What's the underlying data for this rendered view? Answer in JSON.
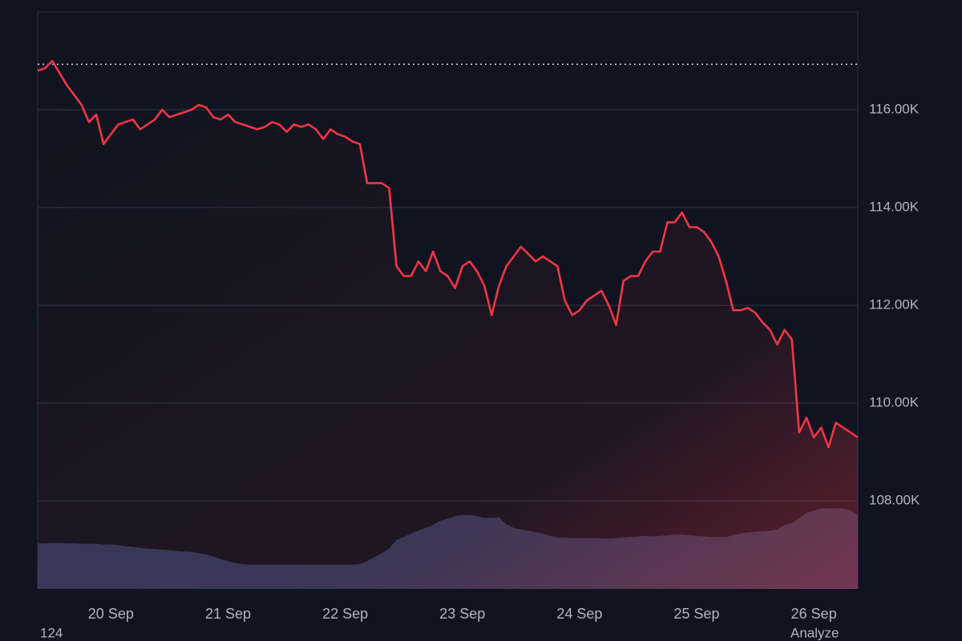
{
  "chart_data": {
    "type": "line",
    "categories": [
      null,
      null,
      null,
      null,
      null,
      null,
      null,
      null,
      null,
      null,
      "20 Sep",
      null,
      null,
      null,
      null,
      null,
      null,
      null,
      null,
      null,
      null,
      null,
      null,
      null,
      null,
      null,
      "21 Sep",
      null,
      null,
      null,
      null,
      null,
      null,
      null,
      null,
      null,
      null,
      null,
      null,
      null,
      null,
      null,
      "22 Sep",
      null,
      null,
      null,
      null,
      null,
      null,
      null,
      null,
      null,
      null,
      null,
      null,
      null,
      null,
      null,
      "23 Sep",
      null,
      null,
      null,
      null,
      null,
      null,
      null,
      null,
      null,
      null,
      null,
      null,
      null,
      null,
      null,
      "24 Sep",
      null,
      null,
      null,
      null,
      null,
      null,
      null,
      null,
      null,
      null,
      null,
      null,
      null,
      null,
      null,
      "25 Sep",
      null,
      null,
      null,
      null,
      null,
      null,
      null,
      null,
      null,
      null,
      null,
      null,
      null,
      null,
      null,
      "26 Sep",
      null,
      null,
      null,
      null,
      null,
      null
    ],
    "series": [
      {
        "color": "#f23645",
        "values": [
          116800,
          116850,
          117000,
          116750,
          116500,
          116300,
          116100,
          115750,
          115900,
          115300,
          115500,
          115700,
          115750,
          115800,
          115600,
          115700,
          115800,
          116000,
          115850,
          115900,
          115950,
          116000,
          116100,
          116050,
          115850,
          115800,
          115900,
          115750,
          115700,
          115650,
          115600,
          115650,
          115750,
          115700,
          115550,
          115700,
          115650,
          115700,
          115600,
          115400,
          115600,
          115500,
          115450,
          115350,
          115300,
          114500,
          114500,
          114500,
          114400,
          112800,
          112600,
          112600,
          112900,
          112700,
          113100,
          112700,
          112600,
          112350,
          112800,
          112900,
          112700,
          112400,
          111800,
          112400,
          112800,
          113000,
          113200,
          113050,
          112900,
          113000,
          112900,
          112800,
          112100,
          111800,
          111900,
          112100,
          112200,
          112300,
          112000,
          111600,
          112500,
          112600,
          112600,
          112900,
          113100,
          113100,
          113700,
          113700,
          113900,
          113600,
          113600,
          113500,
          113300,
          113000,
          112500,
          111900,
          111900,
          111950,
          111850,
          111650,
          111500,
          111200,
          111500,
          111300,
          109400,
          109700,
          109300,
          109500,
          109100,
          109600,
          109500,
          109400,
          109300
        ]
      },
      {
        "color": "#343d62",
        "axis": "y2",
        "values": [
          7.9,
          7.9,
          8.0,
          8.0,
          7.9,
          7.9,
          7.8,
          7.8,
          7.8,
          7.7,
          7.7,
          7.6,
          7.4,
          7.3,
          7.1,
          7.0,
          6.9,
          6.8,
          6.7,
          6.6,
          6.5,
          6.4,
          6.2,
          6.0,
          5.6,
          5.2,
          4.8,
          4.5,
          4.3,
          4.2,
          4.2,
          4.2,
          4.2,
          4.2,
          4.2,
          4.2,
          4.2,
          4.2,
          4.2,
          4.2,
          4.2,
          4.2,
          4.2,
          4.2,
          4.3,
          4.8,
          5.5,
          6.2,
          7.0,
          8.5,
          9.0,
          9.6,
          10.1,
          10.6,
          11.1,
          11.8,
          12.2,
          12.6,
          12.8,
          12.8,
          12.6,
          12.3,
          12.3,
          12.4,
          11.2,
          10.6,
          10.3,
          10.1,
          9.8,
          9.6,
          9.2,
          8.9,
          8.9,
          8.8,
          8.8,
          8.8,
          8.8,
          8.8,
          8.7,
          8.8,
          8.9,
          9.0,
          9.1,
          9.2,
          9.1,
          9.2,
          9.3,
          9.4,
          9.4,
          9.3,
          9.2,
          9.1,
          9.0,
          9.0,
          9.0,
          9.3,
          9.6,
          9.8,
          9.9,
          10.0,
          10.1,
          10.3,
          11.1,
          11.4,
          12.2,
          13.2,
          13.6,
          13.9,
          14.0,
          14.0,
          13.9,
          13.6,
          12.8
        ]
      }
    ],
    "ylim": [
      106200,
      118000
    ],
    "yticks": [
      {
        "value": 108000,
        "label": "108.00K"
      },
      {
        "value": 110000,
        "label": "110.00K"
      },
      {
        "value": 112000,
        "label": "112.00K"
      },
      {
        "value": 114000,
        "label": "114.00K"
      },
      {
        "value": 116000,
        "label": "116.00K"
      }
    ],
    "y2lim": [
      0,
      100
    ],
    "reference_line": 116930,
    "grid": true
  },
  "footer": {
    "left": "124",
    "right": "Analyze"
  }
}
